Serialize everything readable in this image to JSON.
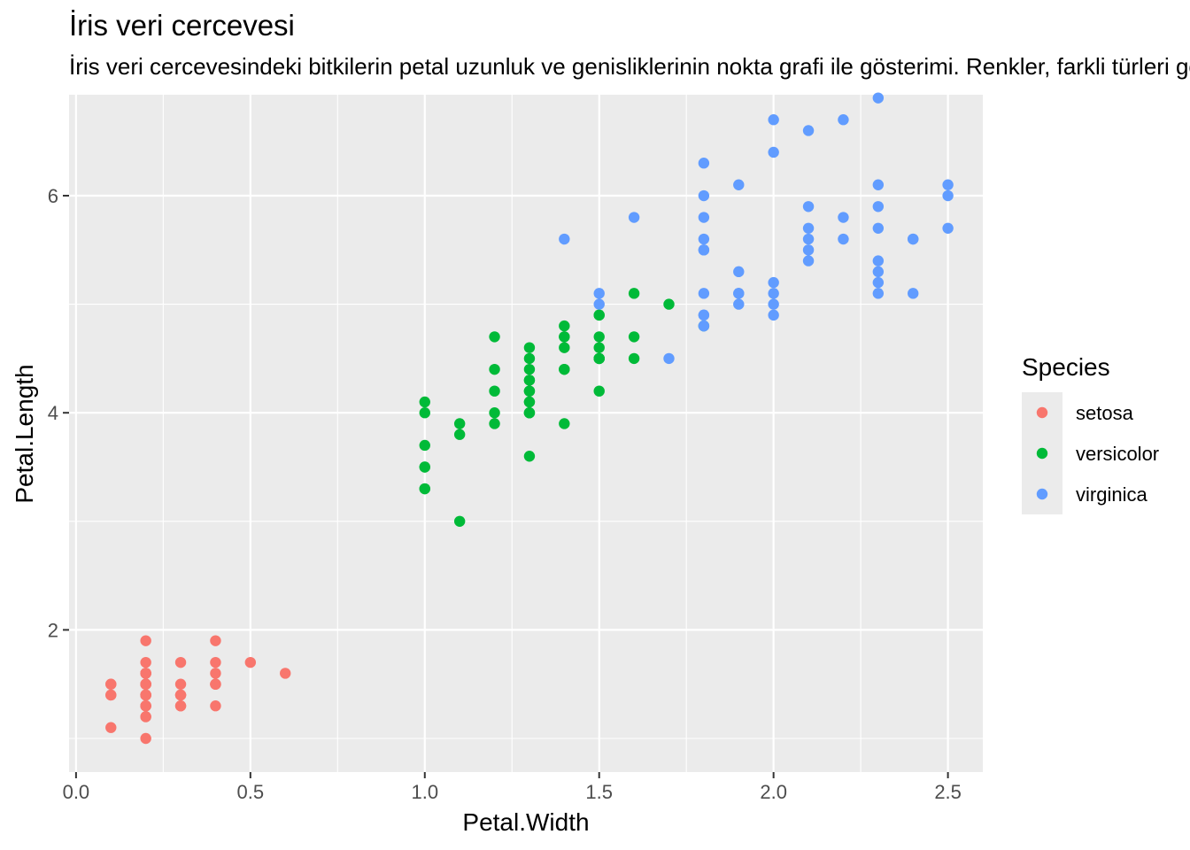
{
  "chart_data": {
    "type": "scatter",
    "title": "İris veri cercevesi",
    "subtitle": "İris veri cercevesindeki bitkilerin petal uzunluk ve genisliklerinin nokta grafi ile gösterimi. Renkler, farkli türleri göstermektedir.",
    "xlabel": "Petal.Width",
    "ylabel": "Petal.Length",
    "xlim": [
      -0.02,
      2.6
    ],
    "ylim": [
      0.69,
      6.93
    ],
    "x_ticks": [
      0.0,
      0.5,
      1.0,
      1.5,
      2.0,
      2.5
    ],
    "x_tick_labels": [
      "0.0",
      "0.5",
      "1.0",
      "1.5",
      "2.0",
      "2.5"
    ],
    "y_ticks": [
      2,
      4,
      6
    ],
    "y_tick_labels": [
      "2",
      "4",
      "6"
    ],
    "grid": true,
    "legend": {
      "title": "Species",
      "position": "right"
    },
    "series": [
      {
        "name": "setosa",
        "color": "#F8766D",
        "points": [
          [
            0.2,
            1.4
          ],
          [
            0.2,
            1.4
          ],
          [
            0.2,
            1.3
          ],
          [
            0.2,
            1.5
          ],
          [
            0.2,
            1.4
          ],
          [
            0.4,
            1.7
          ],
          [
            0.3,
            1.4
          ],
          [
            0.2,
            1.5
          ],
          [
            0.2,
            1.4
          ],
          [
            0.1,
            1.5
          ],
          [
            0.2,
            1.5
          ],
          [
            0.2,
            1.6
          ],
          [
            0.1,
            1.4
          ],
          [
            0.1,
            1.1
          ],
          [
            0.2,
            1.2
          ],
          [
            0.4,
            1.5
          ],
          [
            0.4,
            1.3
          ],
          [
            0.3,
            1.4
          ],
          [
            0.3,
            1.7
          ],
          [
            0.3,
            1.5
          ],
          [
            0.2,
            1.7
          ],
          [
            0.4,
            1.5
          ],
          [
            0.2,
            1.0
          ],
          [
            0.5,
            1.7
          ],
          [
            0.2,
            1.9
          ],
          [
            0.2,
            1.6
          ],
          [
            0.4,
            1.6
          ],
          [
            0.2,
            1.5
          ],
          [
            0.2,
            1.4
          ],
          [
            0.2,
            1.6
          ],
          [
            0.2,
            1.6
          ],
          [
            0.4,
            1.5
          ],
          [
            0.1,
            1.5
          ],
          [
            0.2,
            1.4
          ],
          [
            0.2,
            1.5
          ],
          [
            0.2,
            1.2
          ],
          [
            0.2,
            1.3
          ],
          [
            0.1,
            1.4
          ],
          [
            0.2,
            1.3
          ],
          [
            0.2,
            1.5
          ],
          [
            0.3,
            1.3
          ],
          [
            0.3,
            1.3
          ],
          [
            0.2,
            1.3
          ],
          [
            0.6,
            1.6
          ],
          [
            0.4,
            1.9
          ],
          [
            0.3,
            1.4
          ],
          [
            0.2,
            1.6
          ],
          [
            0.2,
            1.4
          ],
          [
            0.2,
            1.5
          ],
          [
            0.2,
            1.4
          ]
        ]
      },
      {
        "name": "versicolor",
        "color": "#00BA38",
        "points": [
          [
            1.4,
            4.7
          ],
          [
            1.5,
            4.5
          ],
          [
            1.5,
            4.9
          ],
          [
            1.3,
            4.0
          ],
          [
            1.5,
            4.6
          ],
          [
            1.3,
            4.5
          ],
          [
            1.6,
            4.7
          ],
          [
            1.0,
            3.3
          ],
          [
            1.3,
            4.6
          ],
          [
            1.4,
            3.9
          ],
          [
            1.0,
            3.5
          ],
          [
            1.5,
            4.2
          ],
          [
            1.0,
            4.0
          ],
          [
            1.4,
            4.7
          ],
          [
            1.3,
            3.6
          ],
          [
            1.4,
            4.4
          ],
          [
            1.5,
            4.5
          ],
          [
            1.0,
            4.1
          ],
          [
            1.5,
            4.5
          ],
          [
            1.1,
            3.9
          ],
          [
            1.8,
            4.8
          ],
          [
            1.3,
            4.0
          ],
          [
            1.5,
            4.9
          ],
          [
            1.2,
            4.7
          ],
          [
            1.3,
            4.3
          ],
          [
            1.4,
            4.4
          ],
          [
            1.4,
            4.8
          ],
          [
            1.7,
            5.0
          ],
          [
            1.5,
            4.5
          ],
          [
            1.0,
            3.5
          ],
          [
            1.1,
            3.8
          ],
          [
            1.0,
            3.7
          ],
          [
            1.2,
            3.9
          ],
          [
            1.6,
            5.1
          ],
          [
            1.5,
            4.5
          ],
          [
            1.6,
            4.5
          ],
          [
            1.5,
            4.7
          ],
          [
            1.3,
            4.4
          ],
          [
            1.3,
            4.1
          ],
          [
            1.3,
            4.0
          ],
          [
            1.2,
            4.4
          ],
          [
            1.4,
            4.6
          ],
          [
            1.2,
            4.0
          ],
          [
            1.0,
            3.3
          ],
          [
            1.3,
            4.2
          ],
          [
            1.2,
            4.2
          ],
          [
            1.3,
            4.2
          ],
          [
            1.3,
            4.3
          ],
          [
            1.1,
            3.0
          ],
          [
            1.3,
            4.1
          ]
        ]
      },
      {
        "name": "virginica",
        "color": "#619CFF",
        "points": [
          [
            2.5,
            6.0
          ],
          [
            1.9,
            5.1
          ],
          [
            2.1,
            5.9
          ],
          [
            1.8,
            5.6
          ],
          [
            2.2,
            5.8
          ],
          [
            2.1,
            6.6
          ],
          [
            1.7,
            4.5
          ],
          [
            1.8,
            6.3
          ],
          [
            1.8,
            5.8
          ],
          [
            2.5,
            6.1
          ],
          [
            2.0,
            5.1
          ],
          [
            1.9,
            5.3
          ],
          [
            2.1,
            5.5
          ],
          [
            2.0,
            5.0
          ],
          [
            2.4,
            5.1
          ],
          [
            2.3,
            5.3
          ],
          [
            1.8,
            5.5
          ],
          [
            2.2,
            6.7
          ],
          [
            2.3,
            6.9
          ],
          [
            1.5,
            5.0
          ],
          [
            2.3,
            5.7
          ],
          [
            2.0,
            4.9
          ],
          [
            2.0,
            6.7
          ],
          [
            1.8,
            4.9
          ],
          [
            2.1,
            5.7
          ],
          [
            1.8,
            6.0
          ],
          [
            1.8,
            4.8
          ],
          [
            1.8,
            4.9
          ],
          [
            2.1,
            5.6
          ],
          [
            1.6,
            5.8
          ],
          [
            1.9,
            6.1
          ],
          [
            2.0,
            6.4
          ],
          [
            2.2,
            5.6
          ],
          [
            1.5,
            5.1
          ],
          [
            1.4,
            5.6
          ],
          [
            2.3,
            6.1
          ],
          [
            2.4,
            5.6
          ],
          [
            1.8,
            5.5
          ],
          [
            1.8,
            4.8
          ],
          [
            2.1,
            5.4
          ],
          [
            2.4,
            5.6
          ],
          [
            2.3,
            5.1
          ],
          [
            1.9,
            5.1
          ],
          [
            2.3,
            5.9
          ],
          [
            2.5,
            5.7
          ],
          [
            2.3,
            5.2
          ],
          [
            1.9,
            5.0
          ],
          [
            2.0,
            5.2
          ],
          [
            2.3,
            5.4
          ],
          [
            1.8,
            5.1
          ]
        ]
      }
    ]
  }
}
